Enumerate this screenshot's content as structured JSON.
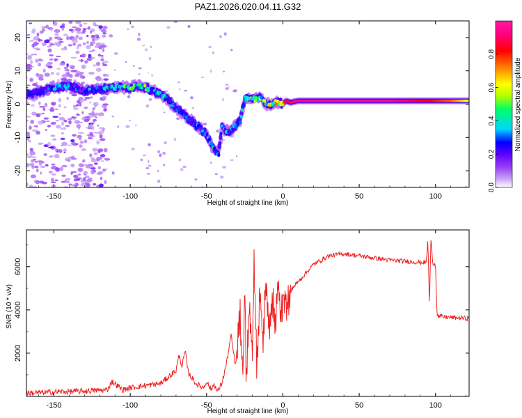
{
  "page_title": "PAZ1.2026.020.04.11.G32",
  "chart_data": [
    {
      "type": "heatmap",
      "title": "PAZ1.2026.020.04.11.G32",
      "xlabel": "Height of straight line (km)",
      "ylabel": "Frequency (Hz)",
      "xlim": [
        -168,
        122
      ],
      "ylim": [
        -25,
        25
      ],
      "xticks": [
        "-150",
        "-100",
        "-50",
        "0",
        "50",
        "100"
      ],
      "xtick_values": [
        -150,
        -100,
        -50,
        0,
        50,
        100
      ],
      "yticks": [
        "-20",
        "-10",
        "0",
        "10",
        "20"
      ],
      "ytick_values": [
        -20,
        -10,
        0,
        10,
        20
      ],
      "colorbar": {
        "label": "Normalized spectral amplitude",
        "range": [
          0,
          1
        ],
        "ticks": [
          "0.0",
          "0.2",
          "0.4",
          "0.6",
          "0.8"
        ],
        "tick_values": [
          0.0,
          0.2,
          0.4,
          0.6,
          0.8
        ],
        "colors": [
          "#ffffff",
          "#c9a6f5",
          "#9b3ef5",
          "#5b00ff",
          "#0000ff",
          "#00d6ff",
          "#00ff66",
          "#b4ff00",
          "#ffff00",
          "#ff8000",
          "#ff0000",
          "#ff0080",
          "#ff1aa0"
        ],
        "color_positions": [
          0.0,
          0.05,
          0.12,
          0.2,
          0.27,
          0.35,
          0.47,
          0.55,
          0.62,
          0.72,
          0.82,
          0.92,
          1.0
        ]
      },
      "trace": {
        "x": [
          -165,
          -158,
          -150,
          -140,
          -130,
          -120,
          -110,
          -100,
          -95,
          -90,
          -85,
          -80,
          -75,
          -70,
          -65,
          -60,
          -55,
          -50,
          -46,
          -42,
          -40,
          -38,
          -35,
          -32,
          -30,
          -28,
          -25,
          -22,
          -20,
          -18,
          -15,
          -12,
          -10,
          -8,
          -5,
          -2,
          0,
          2,
          5,
          10,
          20,
          30,
          50,
          70,
          90,
          110,
          122
        ],
        "frequency": [
          3,
          4,
          5,
          5.5,
          4,
          4.5,
          5,
          5,
          5.5,
          5,
          4,
          3,
          1,
          -1,
          -3,
          -5,
          -7,
          -9,
          -13,
          -15,
          -7,
          -8,
          -8,
          -7,
          -6,
          -5,
          2,
          1.5,
          2,
          1.5,
          2,
          0.5,
          0,
          0,
          0.5,
          0.5,
          0,
          1,
          0.5,
          1,
          1,
          1,
          1,
          1,
          1,
          1,
          1
        ],
        "amplitude": [
          0.22,
          0.25,
          0.3,
          0.28,
          0.25,
          0.3,
          0.4,
          0.45,
          0.45,
          0.5,
          0.35,
          0.35,
          0.3,
          0.3,
          0.3,
          0.28,
          0.3,
          0.3,
          0.35,
          0.3,
          0.3,
          0.3,
          0.32,
          0.35,
          0.3,
          0.3,
          0.4,
          0.45,
          0.4,
          0.45,
          0.45,
          0.5,
          0.5,
          0.55,
          0.6,
          0.65,
          0.7,
          0.85,
          0.9,
          0.95,
          0.95,
          0.95,
          0.95,
          0.95,
          0.85,
          0.75,
          0.6
        ]
      },
      "noise_region_km": [
        -168,
        -115
      ]
    },
    {
      "type": "line",
      "xlabel": "Height of straight line (km)",
      "ylabel": "SNR (10 * v/v)",
      "xlim": [
        -168,
        122
      ],
      "ylim": [
        0,
        7700
      ],
      "xticks": [
        "-150",
        "-100",
        "-50",
        "0",
        "50",
        "100"
      ],
      "xtick_values": [
        -150,
        -100,
        -50,
        0,
        50,
        100
      ],
      "yticks": [
        "2000",
        "4000",
        "6000"
      ],
      "ytick_values": [
        2000,
        4000,
        6000
      ],
      "series": [
        {
          "name": "SNR",
          "color": "#ee2222",
          "x": [
            -168,
            -150,
            -130,
            -115,
            -112,
            -105,
            -100,
            -90,
            -80,
            -75,
            -70,
            -68,
            -66,
            -64,
            -62,
            -60,
            -57,
            -55,
            -52,
            -50,
            -47,
            -45,
            -43,
            -40,
            -37,
            -34,
            -31,
            -28,
            -26,
            -25,
            -24,
            -22,
            -20,
            -19,
            -17,
            -15,
            -13,
            -11,
            -9,
            -7,
            -5,
            -3,
            -1,
            0,
            3,
            6,
            10,
            15,
            20,
            25,
            30,
            40,
            50,
            60,
            70,
            80,
            90,
            94,
            95,
            96,
            97,
            98,
            100,
            101,
            102,
            110,
            122
          ],
          "y": [
            150,
            200,
            250,
            300,
            700,
            300,
            400,
            500,
            600,
            900,
            1200,
            1900,
            1400,
            2100,
            1100,
            900,
            600,
            500,
            400,
            700,
            300,
            600,
            200,
            600,
            1500,
            2800,
            1400,
            3600,
            600,
            5500,
            900,
            4300,
            1800,
            6300,
            1200,
            5000,
            2500,
            5400,
            3000,
            4700,
            3300,
            5200,
            3500,
            4700,
            4300,
            5000,
            5300,
            5700,
            6100,
            6300,
            6500,
            6600,
            6500,
            6400,
            6300,
            6250,
            6200,
            6200,
            7300,
            4100,
            7400,
            6200,
            6100,
            3800,
            3700,
            3650,
            3600
          ],
          "noise_amplitude": 150
        }
      ]
    }
  ]
}
